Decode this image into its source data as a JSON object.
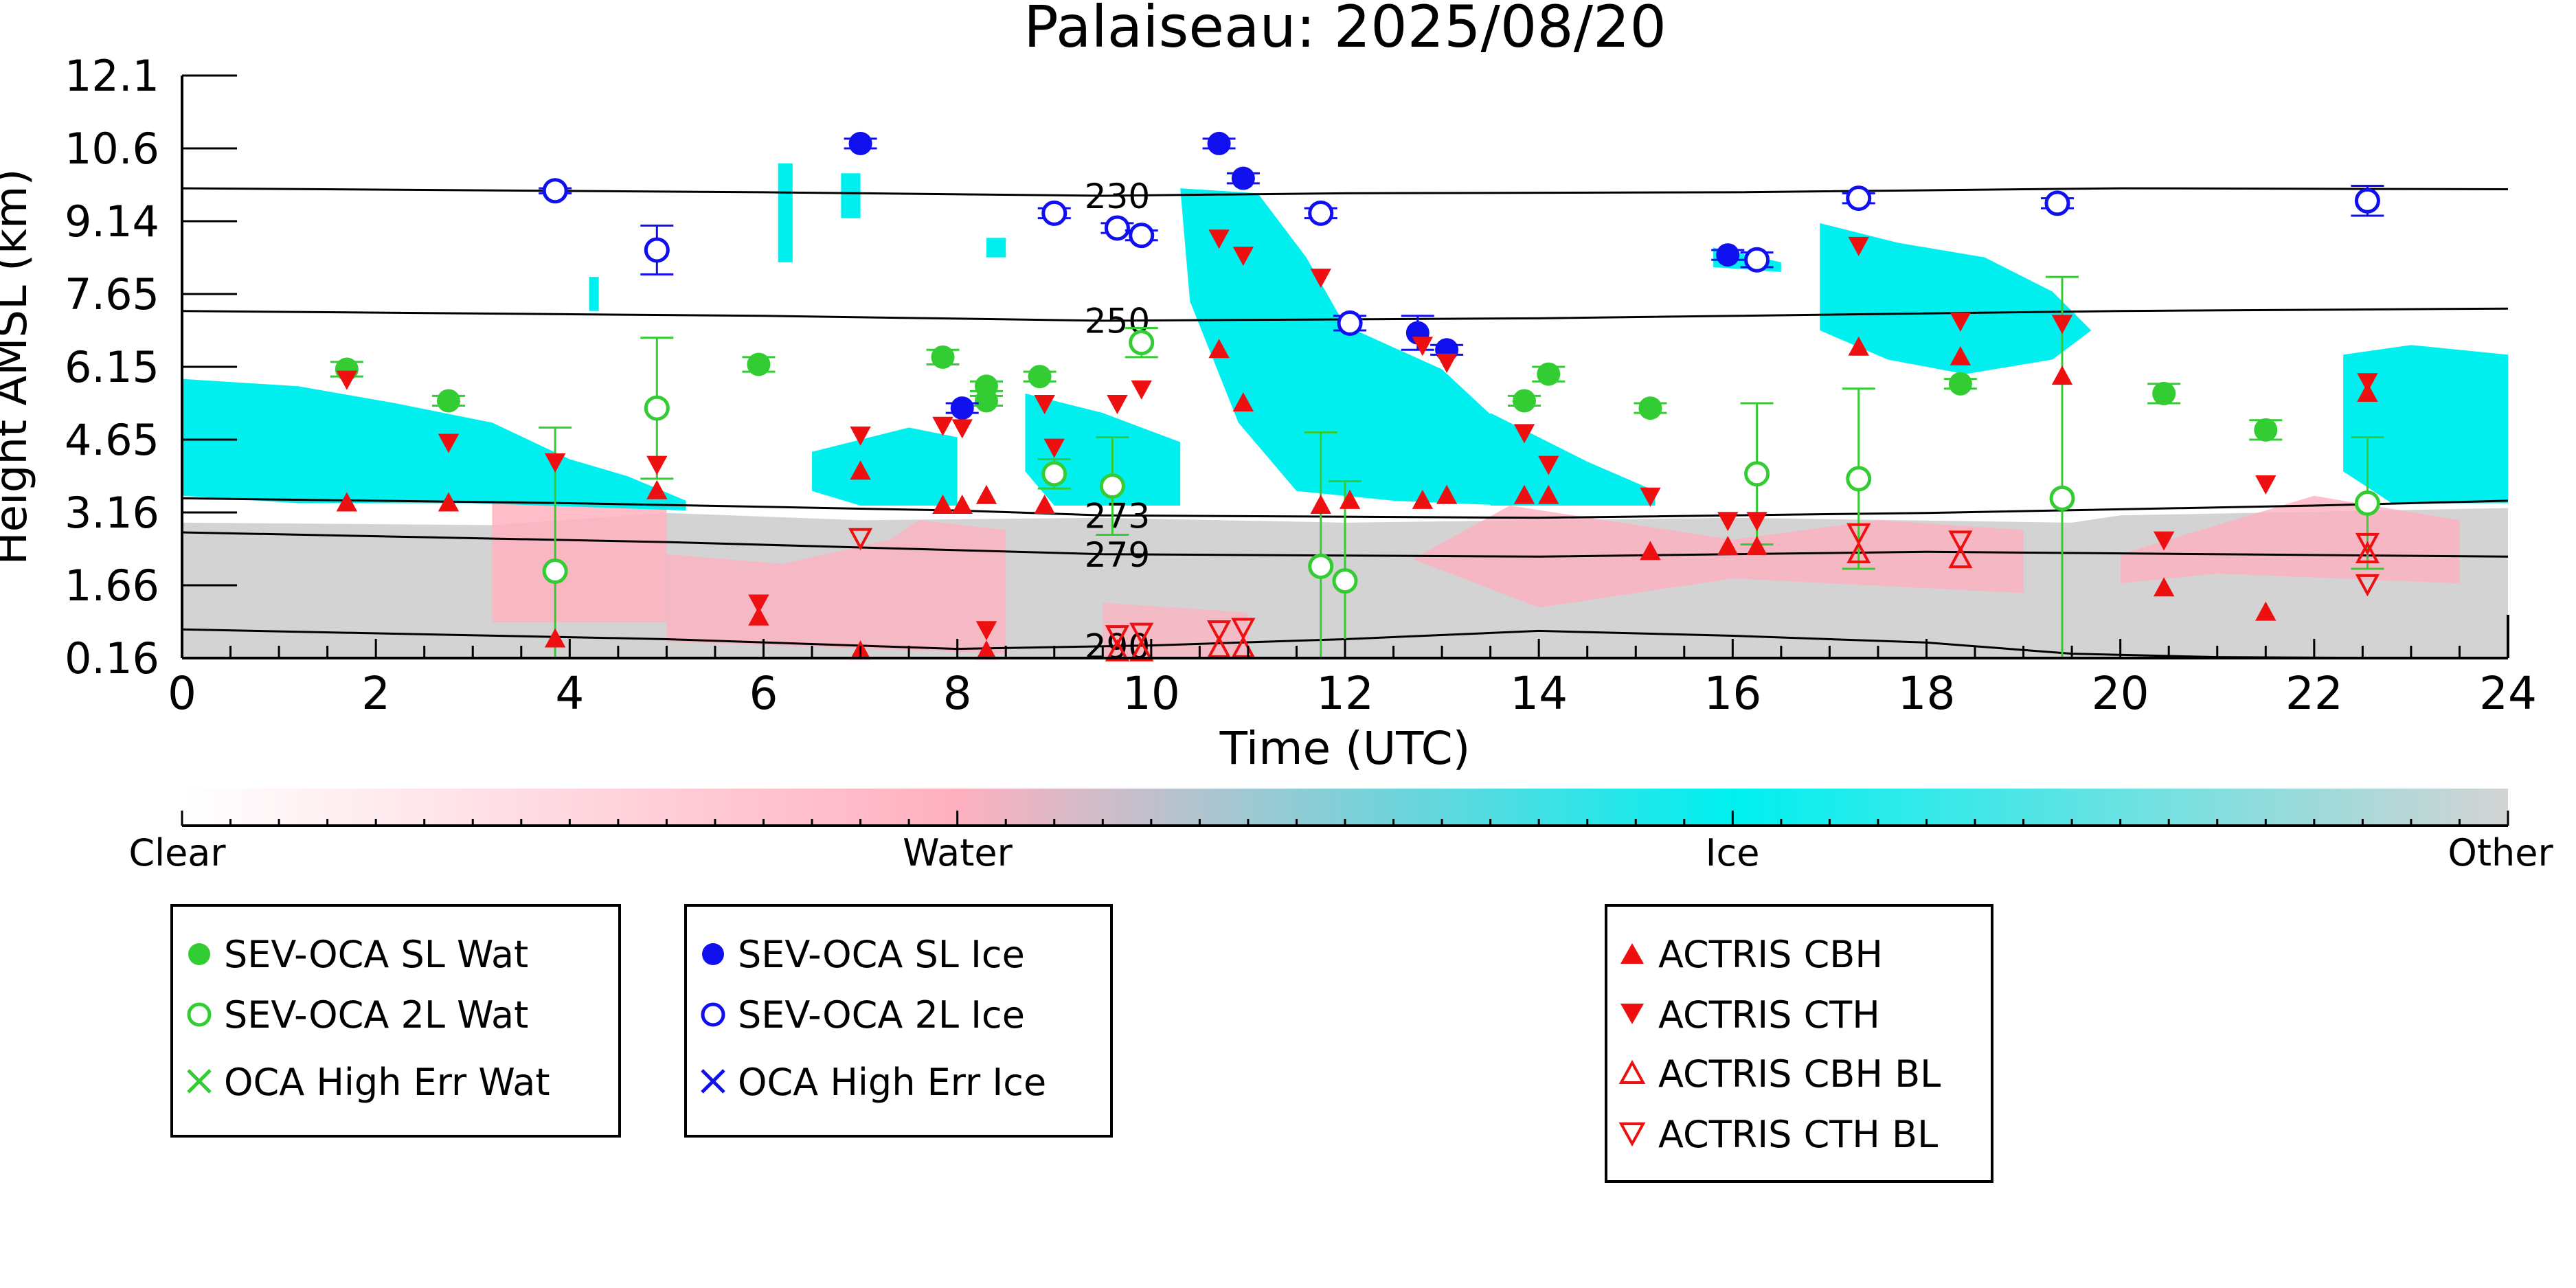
{
  "chart_data": {
    "type": "scatter",
    "title": "Palaiseau: 2025/08/20",
    "xlabel": "Time (UTC)",
    "ylabel": "Height AMSL (km)",
    "xlim": [
      0,
      24
    ],
    "ylim": [
      0.16,
      12.1
    ],
    "x_ticks": [
      "0",
      "2",
      "4",
      "6",
      "8",
      "10",
      "12",
      "14",
      "16",
      "18",
      "20",
      "22",
      "24"
    ],
    "y_ticks": [
      "0.16",
      "1.66",
      "3.16",
      "4.65",
      "6.15",
      "7.65",
      "9.14",
      "10.6",
      "12.1"
    ],
    "y_tick_values": [
      0.16,
      1.66,
      3.16,
      4.65,
      6.15,
      7.65,
      9.14,
      10.6,
      12.1
    ],
    "background": "cloud phase curtain (Clear / Water / Ice / Other)",
    "isotherms": [
      {
        "label": "230",
        "points": [
          [
            0,
            9.8
          ],
          [
            6,
            9.72
          ],
          [
            9.5,
            9.65
          ],
          [
            12,
            9.7
          ],
          [
            16,
            9.72
          ],
          [
            20,
            9.8
          ],
          [
            24,
            9.78
          ]
        ]
      },
      {
        "label": "250",
        "points": [
          [
            0,
            7.3
          ],
          [
            6,
            7.2
          ],
          [
            9.5,
            7.1
          ],
          [
            14,
            7.15
          ],
          [
            20,
            7.3
          ],
          [
            24,
            7.35
          ]
        ]
      },
      {
        "label": "273",
        "points": [
          [
            0,
            3.45
          ],
          [
            4,
            3.35
          ],
          [
            8,
            3.2
          ],
          [
            9.5,
            3.1
          ],
          [
            14,
            3.05
          ],
          [
            18,
            3.15
          ],
          [
            22,
            3.3
          ],
          [
            24,
            3.4
          ]
        ]
      },
      {
        "label": "279",
        "points": [
          [
            0,
            2.75
          ],
          [
            5,
            2.55
          ],
          [
            9.5,
            2.3
          ],
          [
            14,
            2.25
          ],
          [
            18,
            2.35
          ],
          [
            24,
            2.25
          ]
        ]
      },
      {
        "label": "290",
        "points": [
          [
            0,
            0.75
          ],
          [
            5,
            0.55
          ],
          [
            8,
            0.35
          ],
          [
            10,
            0.42
          ],
          [
            12,
            0.55
          ],
          [
            14,
            0.72
          ],
          [
            16,
            0.62
          ],
          [
            18,
            0.48
          ],
          [
            19.5,
            0.25
          ],
          [
            21,
            0.18
          ],
          [
            23,
            0.16
          ]
        ]
      }
    ],
    "series": [
      {
        "name": "SEV-OCA SL Wat",
        "color": "#33cc33",
        "marker": "filled-circle",
        "points": [
          [
            1.7,
            6.1
          ],
          [
            2.75,
            5.45
          ],
          [
            5.95,
            6.2
          ],
          [
            7.85,
            6.35
          ],
          [
            8.3,
            5.75
          ],
          [
            8.3,
            5.45
          ],
          [
            8.85,
            5.95
          ],
          [
            13.85,
            5.45
          ],
          [
            14.1,
            6.0
          ],
          [
            15.15,
            5.3
          ],
          [
            18.35,
            5.8
          ],
          [
            20.45,
            5.6
          ],
          [
            21.5,
            4.85
          ]
        ],
        "err": [
          0.15,
          0.1,
          0.15,
          0.15,
          0.1,
          0.1,
          0.1,
          0.1,
          0.15,
          0.1,
          0.1,
          0.2,
          0.2
        ]
      },
      {
        "name": "SEV-OCA 2L Wat",
        "color": "#33cc33",
        "marker": "open-circle",
        "points": [
          [
            3.85,
            1.95
          ],
          [
            4.9,
            5.3
          ],
          [
            9.0,
            3.95
          ],
          [
            9.6,
            3.7
          ],
          [
            9.9,
            6.65
          ],
          [
            11.75,
            2.05
          ],
          [
            12.0,
            1.75
          ],
          [
            16.25,
            3.95
          ],
          [
            17.3,
            3.85
          ],
          [
            19.4,
            3.45
          ],
          [
            22.55,
            3.35
          ]
        ],
        "err": [
          2.95,
          1.45,
          0.3,
          1.0,
          0.3,
          2.75,
          2.05,
          1.45,
          1.85,
          4.55,
          1.35
        ]
      },
      {
        "name": "OCA High Err Wat",
        "color": "#33cc33",
        "marker": "x",
        "points": []
      },
      {
        "name": "SEV-OCA SL Ice",
        "color": "#1010ee",
        "marker": "filled-circle",
        "points": [
          [
            7.0,
            10.7
          ],
          [
            8.05,
            5.3
          ],
          [
            10.7,
            10.7
          ],
          [
            10.95,
            10.0
          ],
          [
            12.75,
            6.85
          ],
          [
            13.05,
            6.5
          ],
          [
            15.95,
            8.45
          ]
        ],
        "err": [
          0.1,
          0.1,
          0.1,
          0.1,
          0.35,
          0.1,
          0.1
        ]
      },
      {
        "name": "SEV-OCA 2L Ice",
        "color": "#1010ee",
        "marker": "open-circle",
        "points": [
          [
            3.85,
            9.75
          ],
          [
            4.9,
            8.55
          ],
          [
            9.0,
            9.3
          ],
          [
            9.65,
            9.0
          ],
          [
            9.9,
            8.85
          ],
          [
            11.75,
            9.3
          ],
          [
            12.05,
            7.05
          ],
          [
            16.25,
            8.35
          ],
          [
            17.3,
            9.6
          ],
          [
            19.35,
            9.5
          ],
          [
            22.55,
            9.55
          ]
        ],
        "err": [
          0.05,
          0.5,
          0.1,
          0.1,
          0.1,
          0.1,
          0.15,
          0.15,
          0.1,
          0.1,
          0.3
        ]
      },
      {
        "name": "OCA High Err Ice",
        "color": "#1010ee",
        "marker": "x",
        "points": []
      },
      {
        "name": "ACTRIS CBH",
        "color": "#ee1010",
        "marker": "filled-triangle-up",
        "points": [
          [
            1.7,
            3.35
          ],
          [
            2.75,
            3.35
          ],
          [
            3.85,
            0.55
          ],
          [
            4.9,
            3.6
          ],
          [
            5.95,
            1.0
          ],
          [
            7.0,
            4.0
          ],
          [
            7.0,
            0.3
          ],
          [
            7.85,
            3.3
          ],
          [
            8.05,
            3.3
          ],
          [
            8.3,
            0.3
          ],
          [
            8.3,
            3.5
          ],
          [
            8.9,
            3.3
          ],
          [
            10.7,
            6.5
          ],
          [
            10.95,
            5.4
          ],
          [
            11.75,
            3.3
          ],
          [
            12.05,
            3.4
          ],
          [
            12.8,
            3.4
          ],
          [
            13.05,
            3.5
          ],
          [
            13.85,
            3.5
          ],
          [
            14.1,
            3.5
          ],
          [
            15.15,
            2.35
          ],
          [
            15.95,
            2.45
          ],
          [
            16.25,
            2.45
          ],
          [
            17.3,
            6.55
          ],
          [
            18.35,
            6.35
          ],
          [
            19.4,
            5.95
          ],
          [
            20.45,
            1.6
          ],
          [
            21.5,
            1.1
          ],
          [
            22.55,
            5.6
          ]
        ]
      },
      {
        "name": "ACTRIS CTH",
        "color": "#ee1010",
        "marker": "filled-triangle-down",
        "points": [
          [
            1.7,
            5.9
          ],
          [
            2.75,
            4.6
          ],
          [
            3.85,
            4.2
          ],
          [
            4.9,
            4.15
          ],
          [
            5.95,
            1.3
          ],
          [
            7.0,
            4.75
          ],
          [
            7.85,
            4.95
          ],
          [
            8.05,
            4.9
          ],
          [
            8.3,
            0.75
          ],
          [
            8.9,
            5.4
          ],
          [
            9.0,
            4.5
          ],
          [
            9.65,
            5.4
          ],
          [
            9.9,
            5.7
          ],
          [
            10.7,
            8.8
          ],
          [
            10.95,
            8.45
          ],
          [
            11.75,
            8.0
          ],
          [
            12.8,
            6.6
          ],
          [
            13.05,
            6.25
          ],
          [
            13.85,
            4.8
          ],
          [
            14.1,
            4.15
          ],
          [
            15.15,
            3.5
          ],
          [
            15.95,
            3.0
          ],
          [
            16.25,
            3.0
          ],
          [
            17.3,
            8.65
          ],
          [
            18.35,
            7.1
          ],
          [
            19.4,
            7.05
          ],
          [
            20.45,
            2.6
          ],
          [
            21.5,
            3.75
          ],
          [
            22.55,
            5.85
          ]
        ]
      },
      {
        "name": "ACTRIS CBH BL",
        "color": "#ee1010",
        "marker": "open-triangle-up",
        "points": [
          [
            9.65,
            0.28
          ],
          [
            9.9,
            0.28
          ],
          [
            10.7,
            0.35
          ],
          [
            10.95,
            0.35
          ],
          [
            17.3,
            2.3
          ],
          [
            18.35,
            2.2
          ],
          [
            22.55,
            2.3
          ]
        ]
      },
      {
        "name": "ACTRIS CTH BL",
        "color": "#ee1010",
        "marker": "open-triangle-down",
        "points": [
          [
            7.0,
            2.65
          ],
          [
            9.65,
            0.65
          ],
          [
            9.9,
            0.7
          ],
          [
            10.7,
            0.75
          ],
          [
            10.95,
            0.8
          ],
          [
            17.3,
            2.75
          ],
          [
            18.35,
            2.6
          ],
          [
            22.55,
            2.55
          ],
          [
            22.55,
            1.7
          ]
        ]
      }
    ],
    "colorbar": {
      "labels": [
        "Clear",
        "Water",
        "Ice",
        "Other"
      ],
      "colors": [
        "#ffffff",
        "#ffb0c0",
        "#00f0f0",
        "#d3d3d3"
      ]
    },
    "legend_groups": [
      [
        "SEV-OCA SL Wat",
        "SEV-OCA 2L Wat",
        "OCA High Err Wat"
      ],
      [
        "SEV-OCA SL Ice",
        "SEV-OCA 2L Ice",
        "OCA High Err Ice"
      ],
      [
        "ACTRIS CBH",
        "ACTRIS CTH",
        "ACTRIS CBH BL",
        "ACTRIS CTH BL"
      ]
    ],
    "legend_placement": "bottom",
    "colors": {
      "water": "#ffb0c0",
      "ice": "#00f0f0",
      "other": "#d3d3d3",
      "wat_marker": "#33cc33",
      "ice_marker": "#1010ee",
      "actris": "#ee1010"
    }
  }
}
